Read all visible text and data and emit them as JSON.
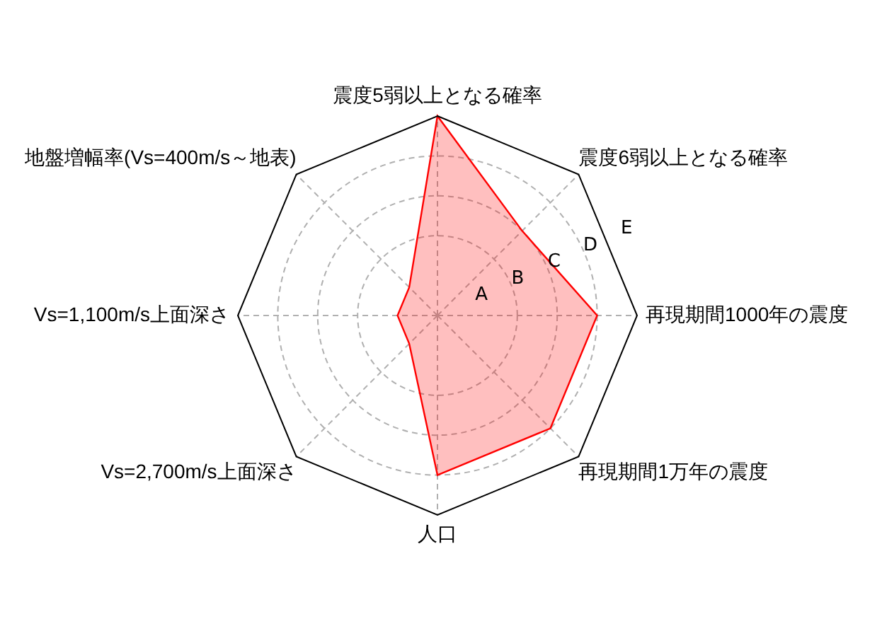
{
  "chart_data": {
    "type": "radar",
    "categories": [
      "震度5弱以上となる確率",
      "震度6弱以上となる確率",
      "再現期間1000年の震度",
      "再現期間1万年の震度",
      "人口",
      "Vs=2,700m/s上面深さ",
      "Vs=1,100m/s上面深さ",
      "地盤増幅率(Vs=400m/s～地表)"
    ],
    "series": [
      {
        "color": "#ff0000",
        "values": [
          5,
          3,
          4,
          4,
          4,
          1,
          1,
          1
        ]
      }
    ],
    "ylim": [
      0,
      5
    ],
    "yticks": [
      {
        "value": 1,
        "label": "A"
      },
      {
        "value": 2,
        "label": "B"
      },
      {
        "value": 3,
        "label": "C"
      },
      {
        "value": 4,
        "label": "D"
      },
      {
        "value": 5,
        "label": "E"
      }
    ],
    "grid": true,
    "legend": false
  }
}
